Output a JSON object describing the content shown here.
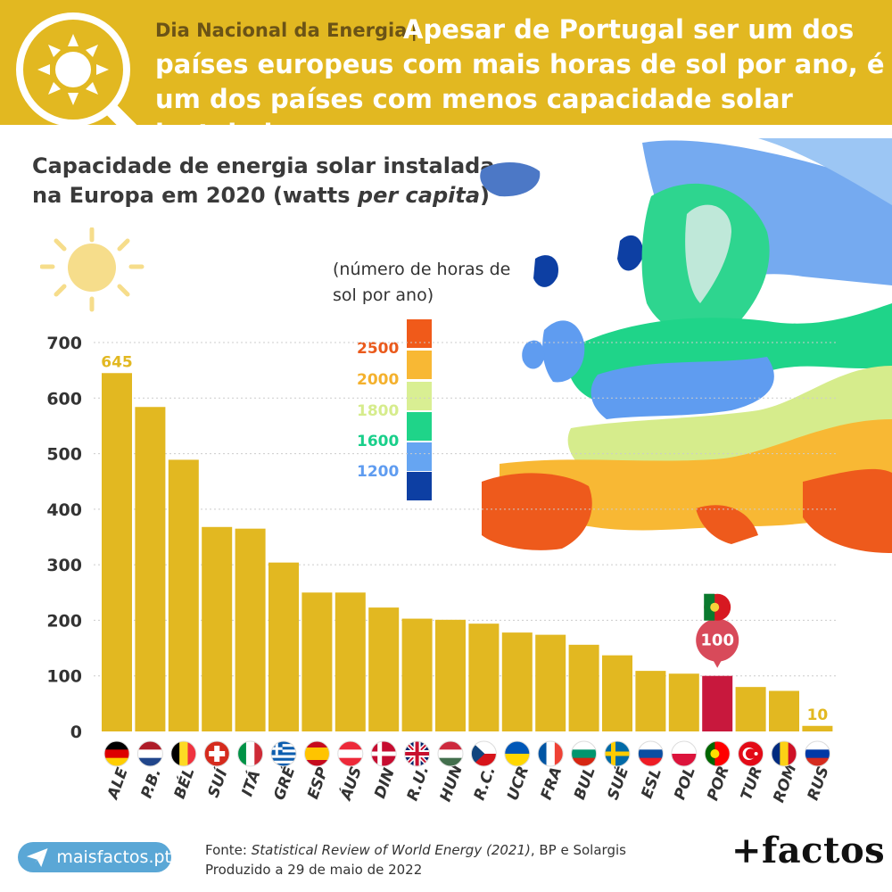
{
  "header": {
    "kicker": "Dia Nacional da Energia",
    "separator": "|",
    "headline": "Apesar de Portugal ser um dos países europeus com mais horas de sol por ano, é um dos países com menos capacidade solar instalada"
  },
  "title": {
    "line1": "Capacidade de energia solar instalada",
    "line2_prefix": "na Europa em 2020 (watts ",
    "line2_italic": "per capita",
    "line2_suffix": ")"
  },
  "legend": {
    "title": "(número de horas de sol por ano)",
    "labels": [
      {
        "text": "2500",
        "color": "#ea5a1c"
      },
      {
        "text": "2000",
        "color": "#f4b12d"
      },
      {
        "text": "1800",
        "color": "#d6ec8c"
      },
      {
        "text": "1600",
        "color": "#19cf8a"
      },
      {
        "text": "1200",
        "color": "#5f9cf0"
      }
    ],
    "swatches": [
      "#f05a1a",
      "#f8b834",
      "#d9ef93",
      "#1fd489",
      "#66a5f2",
      "#0d3fa3"
    ]
  },
  "chart_data": {
    "type": "bar",
    "title": "Capacidade de energia solar instalada na Europa em 2020 (watts per capita)",
    "categories": [
      "ALE",
      "P.B.",
      "BÉL",
      "SUÍ",
      "ITÁ",
      "GRÉ",
      "ESP",
      "ÁUS",
      "DIN",
      "R.U.",
      "HUN",
      "R.C.",
      "UCR",
      "FRA",
      "BUL",
      "SUÉ",
      "ESL",
      "POL",
      "POR",
      "TUR",
      "ROM",
      "RUS"
    ],
    "values": [
      645,
      584,
      489,
      368,
      365,
      304,
      250,
      250,
      223,
      203,
      201,
      194,
      178,
      174,
      156,
      137,
      109,
      104,
      100,
      80,
      73,
      10
    ],
    "data_labels": {
      "ALE": "645",
      "POR": "100",
      "RUS": "10"
    },
    "ylim": [
      0,
      700
    ],
    "yticks": [
      0,
      100,
      200,
      300,
      400,
      500,
      600,
      700
    ],
    "bar_color": "#e2b821",
    "highlight": {
      "category": "POR",
      "color": "#c8183d"
    },
    "grid": true
  },
  "flags": [
    "germany",
    "netherlands",
    "belgium",
    "switzerland",
    "italy",
    "greece",
    "spain",
    "austria",
    "denmark",
    "united-kingdom",
    "hungary",
    "czech-republic",
    "ukraine",
    "france",
    "bulgaria",
    "sweden",
    "slovakia",
    "poland",
    "portugal",
    "turkey",
    "romania",
    "russia"
  ],
  "footer": {
    "badge": "maisfactos.pt",
    "source_prefix": "Fonte: ",
    "source_italic": "Statistical Review of World Energy (2021)",
    "source_suffix": ", BP e Solargis",
    "produced": "Produzido a 29 de maio de 2022",
    "brand": "+factos"
  },
  "colors": {
    "header": "#e2b821",
    "bar": "#e2b821",
    "highlight": "#c8183d",
    "portugal_callout": "#d84a5a"
  }
}
